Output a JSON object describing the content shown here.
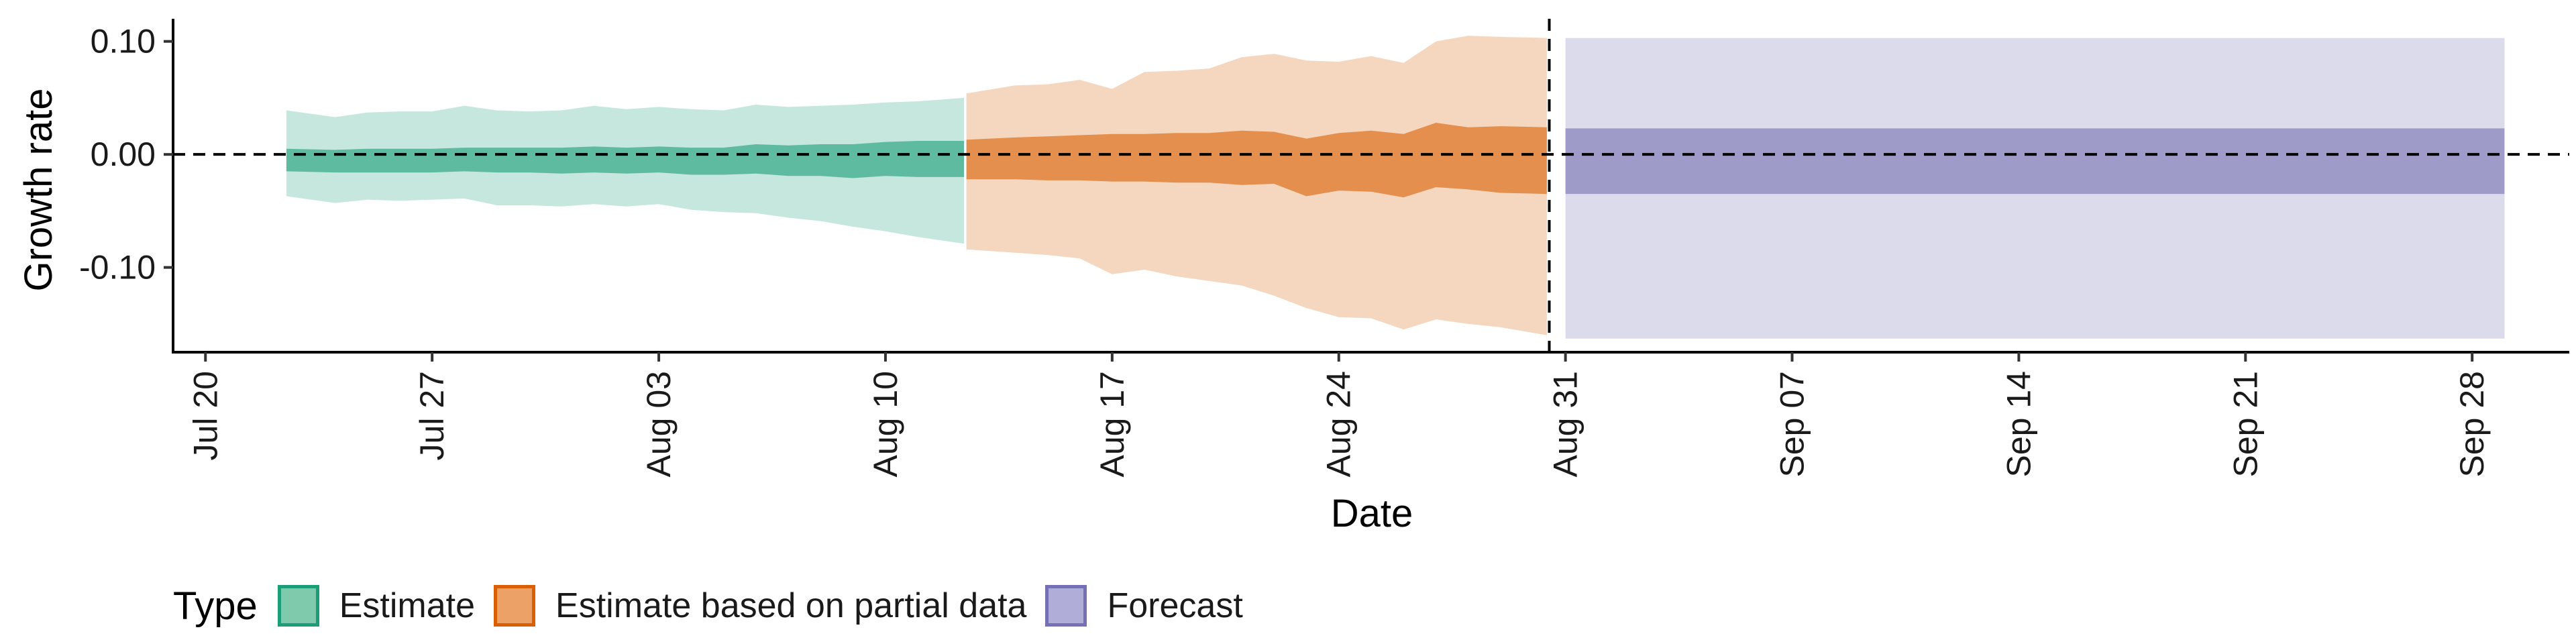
{
  "chart_data": {
    "type": "area",
    "xlabel": "Date",
    "ylabel": "Growth rate",
    "ylim": [
      -0.175,
      0.12
    ],
    "yticks": [
      0.1,
      0.0,
      -0.1
    ],
    "ytick_labels": [
      "0.10",
      "0.00",
      "-0.10"
    ],
    "xlim": [
      "2021-07-19",
      "2021-10-01"
    ],
    "xticks": [
      "2021-07-20",
      "2021-07-27",
      "2021-08-03",
      "2021-08-10",
      "2021-08-17",
      "2021-08-24",
      "2021-08-31",
      "2021-09-07",
      "2021-09-14",
      "2021-09-21",
      "2021-09-28"
    ],
    "xtick_labels": [
      "Jul 20",
      "Jul 27",
      "Aug 03",
      "Aug 10",
      "Aug 17",
      "Aug 24",
      "Aug 31",
      "Sep 07",
      "Sep 14",
      "Sep 21",
      "Sep 28"
    ],
    "reference_lines": {
      "horizontal_y": 0,
      "vertical_x": "2021-08-30"
    },
    "legend": {
      "title": "Type",
      "position": "bottom-left"
    },
    "series": [
      {
        "name": "Estimate",
        "fill": "#1b9e77",
        "points": [
          {
            "date": "2021-07-23",
            "outer_low": -0.037,
            "outer_high": 0.039,
            "inner_low": -0.015,
            "inner_high": 0.005
          },
          {
            "date": "2021-07-24",
            "outer_low": -0.043,
            "outer_high": 0.033,
            "inner_low": -0.016,
            "inner_high": 0.004
          },
          {
            "date": "2021-07-25",
            "outer_low": -0.04,
            "outer_high": 0.037,
            "inner_low": -0.016,
            "inner_high": 0.005
          },
          {
            "date": "2021-07-26",
            "outer_low": -0.041,
            "outer_high": 0.038,
            "inner_low": -0.016,
            "inner_high": 0.005
          },
          {
            "date": "2021-07-27",
            "outer_low": -0.04,
            "outer_high": 0.038,
            "inner_low": -0.016,
            "inner_high": 0.005
          },
          {
            "date": "2021-07-28",
            "outer_low": -0.039,
            "outer_high": 0.043,
            "inner_low": -0.015,
            "inner_high": 0.006
          },
          {
            "date": "2021-07-29",
            "outer_low": -0.045,
            "outer_high": 0.039,
            "inner_low": -0.016,
            "inner_high": 0.006
          },
          {
            "date": "2021-07-30",
            "outer_low": -0.045,
            "outer_high": 0.038,
            "inner_low": -0.016,
            "inner_high": 0.006
          },
          {
            "date": "2021-07-31",
            "outer_low": -0.046,
            "outer_high": 0.039,
            "inner_low": -0.017,
            "inner_high": 0.006
          },
          {
            "date": "2021-08-01",
            "outer_low": -0.044,
            "outer_high": 0.043,
            "inner_low": -0.016,
            "inner_high": 0.007
          },
          {
            "date": "2021-08-02",
            "outer_low": -0.046,
            "outer_high": 0.04,
            "inner_low": -0.017,
            "inner_high": 0.006
          },
          {
            "date": "2021-08-03",
            "outer_low": -0.044,
            "outer_high": 0.042,
            "inner_low": -0.016,
            "inner_high": 0.007
          },
          {
            "date": "2021-08-04",
            "outer_low": -0.049,
            "outer_high": 0.04,
            "inner_low": -0.018,
            "inner_high": 0.006
          },
          {
            "date": "2021-08-05",
            "outer_low": -0.051,
            "outer_high": 0.039,
            "inner_low": -0.018,
            "inner_high": 0.006
          },
          {
            "date": "2021-08-06",
            "outer_low": -0.052,
            "outer_high": 0.044,
            "inner_low": -0.017,
            "inner_high": 0.009
          },
          {
            "date": "2021-08-07",
            "outer_low": -0.056,
            "outer_high": 0.042,
            "inner_low": -0.019,
            "inner_high": 0.008
          },
          {
            "date": "2021-08-08",
            "outer_low": -0.059,
            "outer_high": 0.043,
            "inner_low": -0.019,
            "inner_high": 0.009
          },
          {
            "date": "2021-08-09",
            "outer_low": -0.064,
            "outer_high": 0.044,
            "inner_low": -0.021,
            "inner_high": 0.009
          },
          {
            "date": "2021-08-10",
            "outer_low": -0.068,
            "outer_high": 0.046,
            "inner_low": -0.019,
            "inner_high": 0.011
          },
          {
            "date": "2021-08-11",
            "outer_low": -0.073,
            "outer_high": 0.047,
            "inner_low": -0.02,
            "inner_high": 0.012
          },
          {
            "date": "2021-08-12",
            "outer_low": -0.079,
            "outer_high": 0.05,
            "inner_low": -0.02,
            "inner_high": 0.012
          }
        ]
      },
      {
        "name": "Estimate based on partial data",
        "fill": "#d95f02",
        "points": [
          {
            "date": "2021-08-13",
            "outer_low": -0.084,
            "outer_high": 0.054,
            "inner_low": -0.022,
            "inner_high": 0.013
          },
          {
            "date": "2021-08-14",
            "outer_low": -0.087,
            "outer_high": 0.061,
            "inner_low": -0.022,
            "inner_high": 0.015
          },
          {
            "date": "2021-08-15",
            "outer_low": -0.089,
            "outer_high": 0.062,
            "inner_low": -0.023,
            "inner_high": 0.016
          },
          {
            "date": "2021-08-16",
            "outer_low": -0.092,
            "outer_high": 0.066,
            "inner_low": -0.023,
            "inner_high": 0.017
          },
          {
            "date": "2021-08-17",
            "outer_low": -0.106,
            "outer_high": 0.058,
            "inner_low": -0.024,
            "inner_high": 0.018
          },
          {
            "date": "2021-08-18",
            "outer_low": -0.102,
            "outer_high": 0.073,
            "inner_low": -0.024,
            "inner_high": 0.018
          },
          {
            "date": "2021-08-19",
            "outer_low": -0.108,
            "outer_high": 0.074,
            "inner_low": -0.025,
            "inner_high": 0.019
          },
          {
            "date": "2021-08-20",
            "outer_low": -0.112,
            "outer_high": 0.076,
            "inner_low": -0.025,
            "inner_high": 0.019
          },
          {
            "date": "2021-08-21",
            "outer_low": -0.116,
            "outer_high": 0.086,
            "inner_low": -0.027,
            "inner_high": 0.021
          },
          {
            "date": "2021-08-22",
            "outer_low": -0.125,
            "outer_high": 0.089,
            "inner_low": -0.026,
            "inner_high": 0.02
          },
          {
            "date": "2021-08-23",
            "outer_low": -0.136,
            "outer_high": 0.083,
            "inner_low": -0.037,
            "inner_high": 0.014
          },
          {
            "date": "2021-08-24",
            "outer_low": -0.144,
            "outer_high": 0.082,
            "inner_low": -0.032,
            "inner_high": 0.019
          },
          {
            "date": "2021-08-25",
            "outer_low": -0.145,
            "outer_high": 0.087,
            "inner_low": -0.033,
            "inner_high": 0.021
          },
          {
            "date": "2021-08-26",
            "outer_low": -0.155,
            "outer_high": 0.081,
            "inner_low": -0.038,
            "inner_high": 0.018
          },
          {
            "date": "2021-08-27",
            "outer_low": -0.146,
            "outer_high": 0.1,
            "inner_low": -0.029,
            "inner_high": 0.028
          },
          {
            "date": "2021-08-28",
            "outer_low": -0.15,
            "outer_high": 0.105,
            "inner_low": -0.031,
            "inner_high": 0.024
          },
          {
            "date": "2021-08-29",
            "outer_low": -0.153,
            "outer_high": 0.104,
            "inner_low": -0.034,
            "inner_high": 0.025
          },
          {
            "date": "2021-08-30",
            "outer_low": -0.16,
            "outer_high": 0.103,
            "inner_low": -0.035,
            "inner_high": 0.024
          }
        ]
      },
      {
        "name": "Forecast",
        "fill": "#7570b3",
        "points": [
          {
            "date": "2021-08-31",
            "outer_low": -0.163,
            "outer_high": 0.103,
            "inner_low": -0.035,
            "inner_high": 0.023
          },
          {
            "date": "2021-09-29",
            "outer_low": -0.163,
            "outer_high": 0.103,
            "inner_low": -0.035,
            "inner_high": 0.023
          }
        ]
      }
    ]
  }
}
